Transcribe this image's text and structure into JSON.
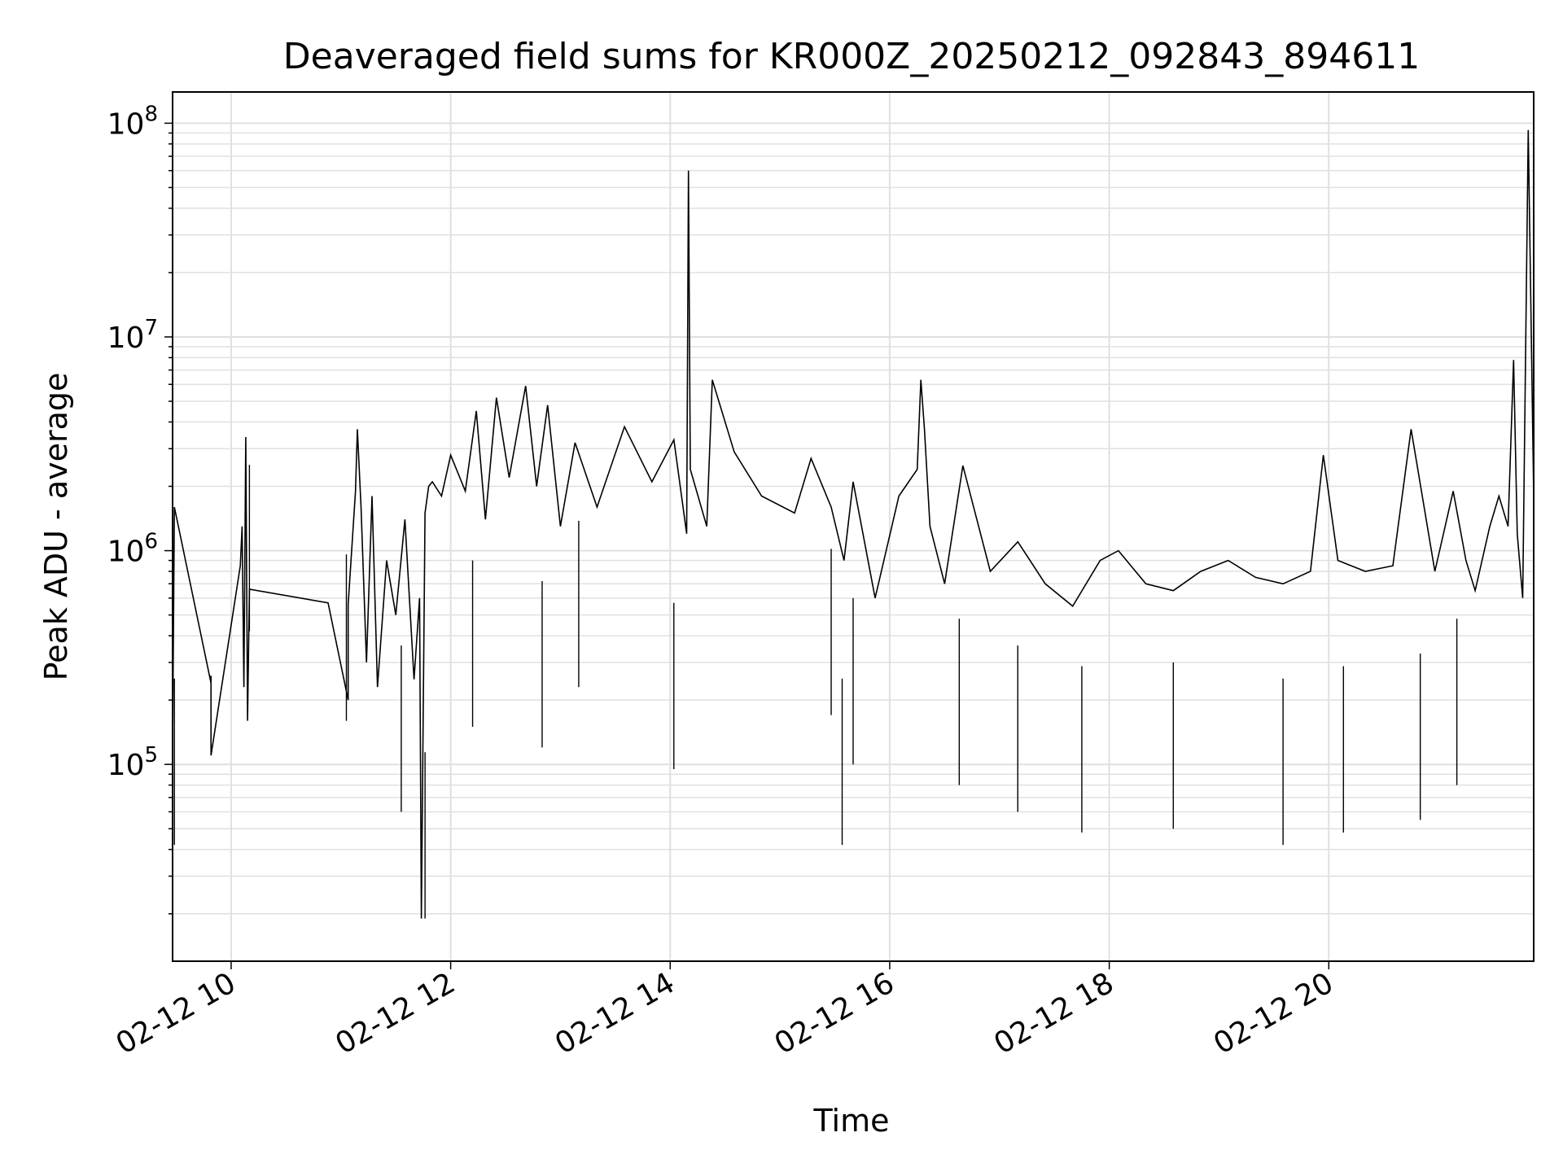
{
  "chart_data": {
    "type": "line",
    "title": "Deaveraged field sums for KR000Z_20250212_092843_894611",
    "xlabel": "Time",
    "ylabel": "Peak ADU - average",
    "x_scale": "time",
    "y_scale": "log",
    "xlim": [
      "2025-02-12 09:28",
      "2025-02-12 21:52"
    ],
    "ylim": [
      12000,
      140000000
    ],
    "x_ticks": [
      {
        "value": "2025-02-12 10:00",
        "label": "02-12 10"
      },
      {
        "value": "2025-02-12 12:00",
        "label": "02-12 12"
      },
      {
        "value": "2025-02-12 14:00",
        "label": "02-12 14"
      },
      {
        "value": "2025-02-12 16:00",
        "label": "02-12 16"
      },
      {
        "value": "2025-02-12 18:00",
        "label": "02-12 18"
      },
      {
        "value": "2025-02-12 20:00",
        "label": "02-12 20"
      }
    ],
    "y_ticks": [
      {
        "value": 100000,
        "base": "10",
        "exp": "5"
      },
      {
        "value": 1000000,
        "base": "10",
        "exp": "6"
      },
      {
        "value": 10000000,
        "base": "10",
        "exp": "7"
      },
      {
        "value": 100000000,
        "base": "10",
        "exp": "8"
      }
    ],
    "grid": true,
    "line_color": "#000000",
    "grid_color": "#e0e0e0",
    "series": [
      {
        "x": [
          "2025-02-12 09:28",
          "2025-02-12 09:29",
          "2025-02-12 09:49",
          "2025-02-12 09:49",
          "2025-02-12 09:49",
          "2025-02-12 10:05",
          "2025-02-12 10:06",
          "2025-02-12 10:07",
          "2025-02-12 10:08",
          "2025-02-12 10:09",
          "2025-02-12 10:10",
          "2025-02-12 10:53",
          "2025-02-12 11:04",
          "2025-02-12 11:04",
          "2025-02-12 11:08",
          "2025-02-12 11:09",
          "2025-02-12 11:11",
          "2025-02-12 11:14",
          "2025-02-12 11:17",
          "2025-02-12 11:20",
          "2025-02-12 11:25",
          "2025-02-12 11:30",
          "2025-02-12 11:35",
          "2025-02-12 11:40",
          "2025-02-12 11:43",
          "2025-02-12 11:44",
          "2025-02-12 11:46",
          "2025-02-12 11:48",
          "2025-02-12 11:50",
          "2025-02-12 11:55",
          "2025-02-12 12:00",
          "2025-02-12 12:08",
          "2025-02-12 12:14",
          "2025-02-12 12:19",
          "2025-02-12 12:25",
          "2025-02-12 12:32",
          "2025-02-12 12:41",
          "2025-02-12 12:47",
          "2025-02-12 12:53",
          "2025-02-12 13:00",
          "2025-02-12 13:08",
          "2025-02-12 13:20",
          "2025-02-12 13:35",
          "2025-02-12 13:50",
          "2025-02-12 14:02",
          "2025-02-12 14:09",
          "2025-02-12 14:10",
          "2025-02-12 14:11",
          "2025-02-12 14:20",
          "2025-02-12 14:23",
          "2025-02-12 14:35",
          "2025-02-12 14:50",
          "2025-02-12 15:08",
          "2025-02-12 15:17",
          "2025-02-12 15:28",
          "2025-02-12 15:35",
          "2025-02-12 15:40",
          "2025-02-12 15:52",
          "2025-02-12 16:05",
          "2025-02-12 16:15",
          "2025-02-12 16:17",
          "2025-02-12 16:19",
          "2025-02-12 16:22",
          "2025-02-12 16:30",
          "2025-02-12 16:40",
          "2025-02-12 16:55",
          "2025-02-12 17:10",
          "2025-02-12 17:25",
          "2025-02-12 17:40",
          "2025-02-12 17:55",
          "2025-02-12 18:05",
          "2025-02-12 18:20",
          "2025-02-12 18:35",
          "2025-02-12 18:50",
          "2025-02-12 19:05",
          "2025-02-12 19:20",
          "2025-02-12 19:35",
          "2025-02-12 19:50",
          "2025-02-12 19:57",
          "2025-02-12 20:05",
          "2025-02-12 20:20",
          "2025-02-12 20:35",
          "2025-02-12 20:45",
          "2025-02-12 20:58",
          "2025-02-12 21:08",
          "2025-02-12 21:15",
          "2025-02-12 21:20",
          "2025-02-12 21:28",
          "2025-02-12 21:33",
          "2025-02-12 21:38",
          "2025-02-12 21:41",
          "2025-02-12 21:43",
          "2025-02-12 21:46",
          "2025-02-12 21:49",
          "2025-02-12 21:52"
        ],
        "y": [
          120000,
          1600000,
          240000,
          260000,
          110000,
          850000,
          1300000,
          230000,
          3400000,
          160000,
          660000,
          570000,
          200000,
          560000,
          1900000,
          3700000,
          1600000,
          300000,
          1800000,
          230000,
          900000,
          500000,
          1400000,
          250000,
          600000,
          19000,
          1500000,
          2000000,
          2100000,
          1800000,
          2800000,
          1900000,
          4500000,
          1400000,
          5200000,
          2200000,
          5900000,
          2000000,
          4800000,
          1300000,
          3200000,
          1600000,
          3800000,
          2100000,
          3300000,
          1200000,
          60000000,
          2400000,
          1300000,
          6300000,
          2900000,
          1800000,
          1500000,
          2700000,
          1600000,
          900000,
          2100000,
          600000,
          1800000,
          2400000,
          6300000,
          3700000,
          1300000,
          700000,
          2500000,
          800000,
          1100000,
          700000,
          550000,
          900000,
          1000000,
          700000,
          650000,
          800000,
          900000,
          750000,
          700000,
          800000,
          2800000,
          900000,
          800000,
          850000,
          3700000,
          800000,
          1900000,
          900000,
          650000,
          1300000,
          1800000,
          1300000,
          7800000,
          1200000,
          600000,
          93000000,
          1800000
        ],
        "lows": [
          42000,
          420000,
          160000,
          60000,
          19000,
          150000,
          120000,
          230000,
          95000,
          170000,
          100000,
          80000,
          42000,
          60000,
          48000,
          50000,
          42000,
          48000,
          55000,
          80000
        ],
        "lows_x": [
          "2025-02-12 09:29",
          "2025-02-12 10:10",
          "2025-02-12 11:03",
          "2025-02-12 11:33",
          "2025-02-12 11:46",
          "2025-02-12 12:12",
          "2025-02-12 12:50",
          "2025-02-12 13:10",
          "2025-02-12 14:02",
          "2025-02-12 15:28",
          "2025-02-12 15:40",
          "2025-02-12 16:38",
          "2025-02-12 15:34",
          "2025-02-12 17:10",
          "2025-02-12 17:45",
          "2025-02-12 18:35",
          "2025-02-12 19:35",
          "2025-02-12 20:08",
          "2025-02-12 20:50",
          "2025-02-12 21:10"
        ]
      }
    ]
  }
}
